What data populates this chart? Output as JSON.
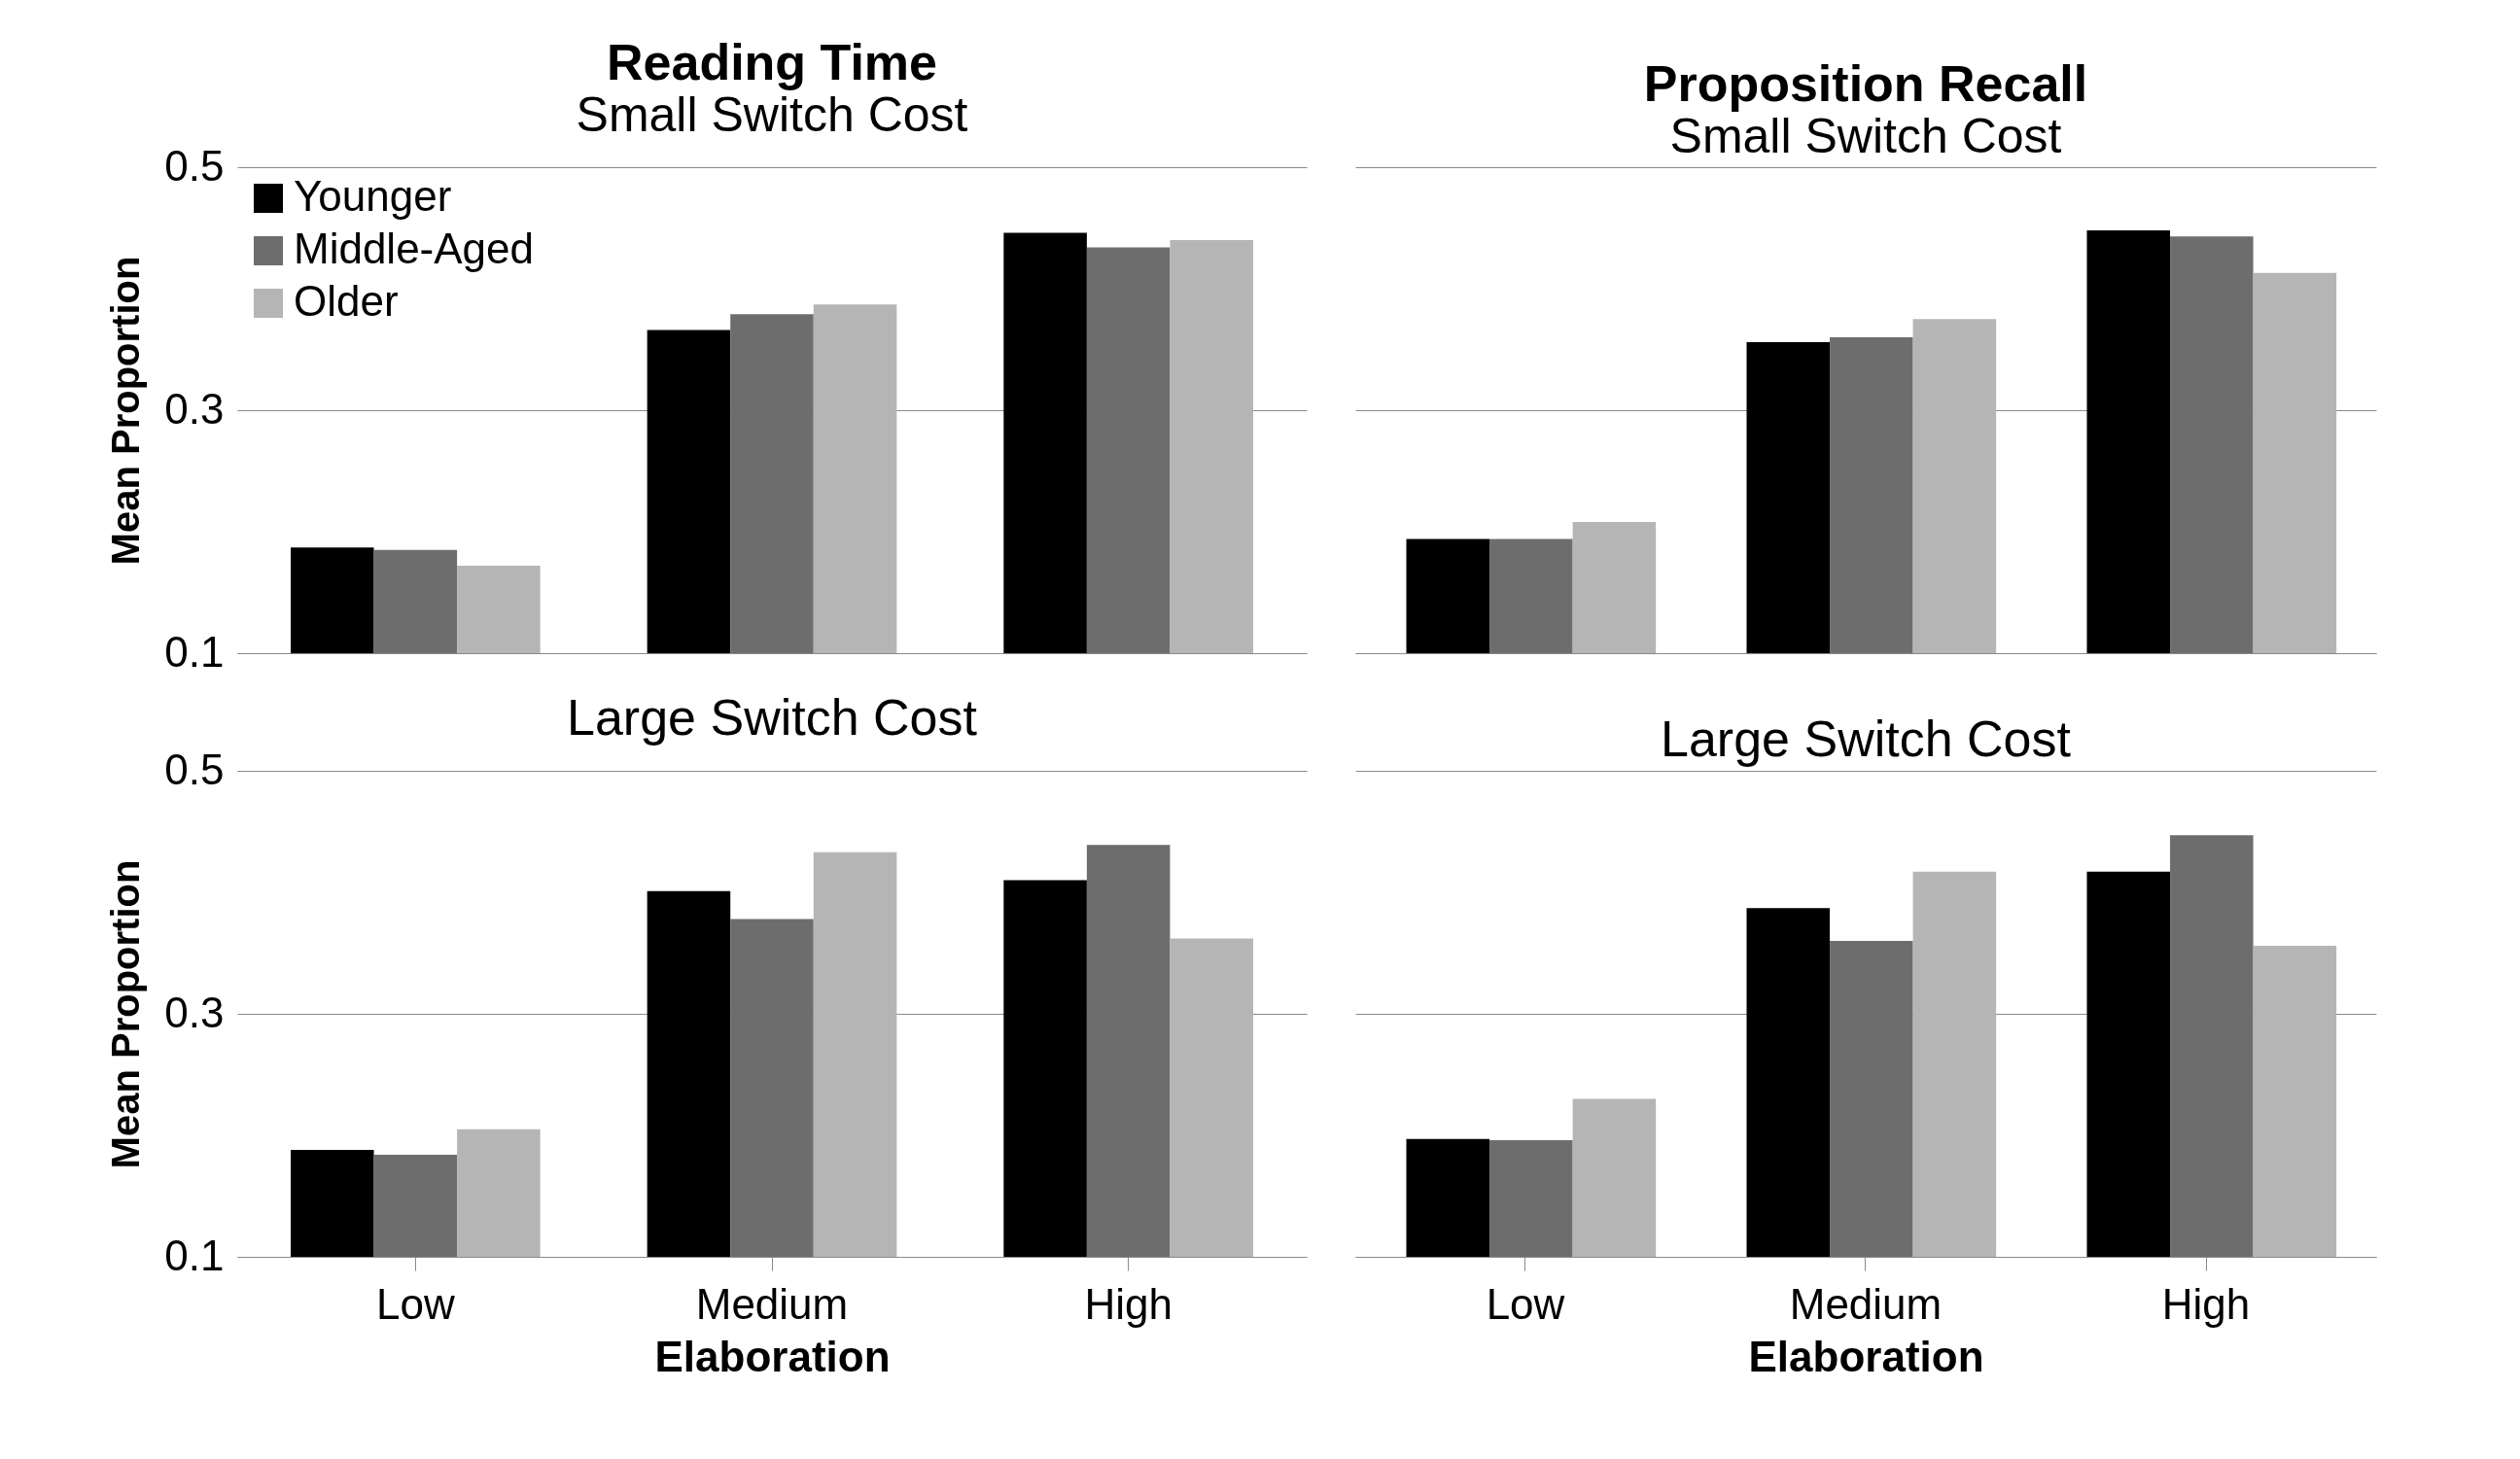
{
  "chart_data": [
    {
      "type": "bar",
      "title": "Reading Time",
      "subtitle": "Small Switch Cost",
      "ylabel": "Mean Proportion",
      "categories": [
        "Low",
        "Medium",
        "High"
      ],
      "ylim": [
        0.1,
        0.5
      ],
      "yticks": [
        0.1,
        0.3,
        0.5
      ],
      "grid": "y",
      "legend": "top left",
      "tick_labels": "y",
      "series": [
        {
          "name": "Younger",
          "color": "#000000",
          "values": [
            0.187,
            0.366,
            0.446
          ]
        },
        {
          "name": "Middle-Aged",
          "color": "#6d6d6d",
          "values": [
            0.185,
            0.379,
            0.434
          ]
        },
        {
          "name": "Older",
          "color": "#b5b5b5",
          "values": [
            0.172,
            0.387,
            0.44
          ]
        }
      ]
    },
    {
      "type": "bar",
      "title": "Proposition Recall",
      "subtitle": "Small Switch Cost",
      "categories": [
        "Low",
        "Medium",
        "High"
      ],
      "ylim": [
        0.1,
        0.5
      ],
      "yticks": [
        0.1,
        0.3,
        0.5
      ],
      "grid": "y",
      "tick_labels": false,
      "series": [
        {
          "name": "Younger",
          "color": "#000000",
          "values": [
            0.194,
            0.356,
            0.448
          ]
        },
        {
          "name": "Middle-Aged",
          "color": "#6d6d6d",
          "values": [
            0.194,
            0.36,
            0.443
          ]
        },
        {
          "name": "Older",
          "color": "#b5b5b5",
          "values": [
            0.208,
            0.375,
            0.413
          ]
        }
      ]
    },
    {
      "type": "bar",
      "title": "Large Switch Cost",
      "xlabel": "Elaboration",
      "ylabel": "Mean Proportion",
      "categories": [
        "Low",
        "Medium",
        "High"
      ],
      "ylim": [
        0.1,
        0.5
      ],
      "yticks": [
        0.1,
        0.3,
        0.5
      ],
      "grid": "y",
      "series": [
        {
          "name": "Younger",
          "color": "#000000",
          "values": [
            0.188,
            0.401,
            0.41
          ]
        },
        {
          "name": "Middle-Aged",
          "color": "#6d6d6d",
          "values": [
            0.184,
            0.378,
            0.439
          ]
        },
        {
          "name": "Older",
          "color": "#b5b5b5",
          "values": [
            0.205,
            0.433,
            0.362
          ]
        }
      ]
    },
    {
      "type": "bar",
      "title": "Large Switch Cost",
      "xlabel": "Elaboration",
      "categories": [
        "Low",
        "Medium",
        "High"
      ],
      "ylim": [
        0.1,
        0.5
      ],
      "yticks": [
        0.1,
        0.3,
        0.5
      ],
      "grid": "y",
      "tick_labels": "x",
      "series": [
        {
          "name": "Younger",
          "color": "#000000",
          "values": [
            0.197,
            0.387,
            0.417
          ]
        },
        {
          "name": "Middle-Aged",
          "color": "#6d6d6d",
          "values": [
            0.196,
            0.36,
            0.447
          ]
        },
        {
          "name": "Older",
          "color": "#b5b5b5",
          "values": [
            0.23,
            0.417,
            0.356
          ]
        }
      ]
    }
  ]
}
